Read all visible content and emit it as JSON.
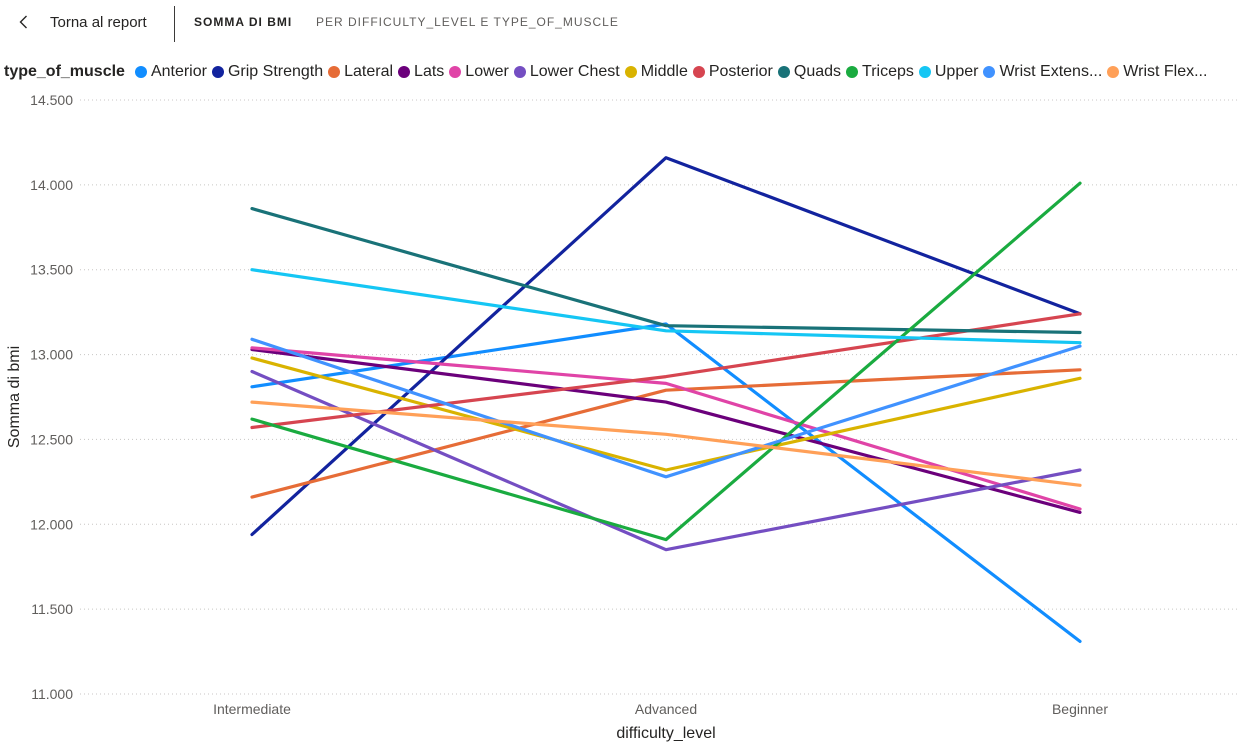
{
  "header": {
    "back_label": "Torna al report",
    "title": "SOMMA DI BMI",
    "subtitle": "PER DIFFICULTY_LEVEL E TYPE_OF_MUSCLE"
  },
  "legend": {
    "title": "type_of_muscle",
    "items": [
      {
        "label": "Anterior",
        "color": "#118DFF"
      },
      {
        "label": "Grip Strength",
        "color": "#12239E"
      },
      {
        "label": "Lateral",
        "color": "#E66C37"
      },
      {
        "label": "Lats",
        "color": "#6B007B"
      },
      {
        "label": "Lower",
        "color": "#E044A7"
      },
      {
        "label": "Lower Chest",
        "color": "#744EC2"
      },
      {
        "label": "Middle",
        "color": "#D9B300"
      },
      {
        "label": "Posterior",
        "color": "#D64550"
      },
      {
        "label": "Quads",
        "color": "#197278"
      },
      {
        "label": "Triceps",
        "color": "#1AAB40"
      },
      {
        "label": "Upper",
        "color": "#15C6F4"
      },
      {
        "label": "Wrist Extens...",
        "color": "#4092FF"
      },
      {
        "label": "Wrist Flex...",
        "color": "#FFA058"
      }
    ]
  },
  "chart_data": {
    "type": "line",
    "categories": [
      "Intermediate",
      "Advanced",
      "Beginner"
    ],
    "xlabel": "difficulty_level",
    "ylabel": "Somma di bmi",
    "ylim": [
      11000,
      14500
    ],
    "yticks": [
      11000,
      11500,
      12000,
      12500,
      13000,
      13500,
      14000,
      14500
    ],
    "ytick_labels": [
      "11.000",
      "11.500",
      "12.000",
      "12.500",
      "13.000",
      "13.500",
      "14.000",
      "14.500"
    ],
    "grid": true,
    "legend_position": "top-left",
    "series": [
      {
        "name": "Anterior",
        "color": "#118DFF",
        "values": [
          12810,
          13180,
          11310
        ]
      },
      {
        "name": "Grip Strength",
        "color": "#12239E",
        "values": [
          11940,
          14160,
          13240
        ]
      },
      {
        "name": "Lateral",
        "color": "#E66C37",
        "values": [
          12160,
          12790,
          12910
        ]
      },
      {
        "name": "Lats",
        "color": "#6B007B",
        "values": [
          13030,
          12720,
          12070
        ]
      },
      {
        "name": "Lower",
        "color": "#E044A7",
        "values": [
          13040,
          12830,
          12090
        ]
      },
      {
        "name": "Lower Chest",
        "color": "#744EC2",
        "values": [
          12900,
          11850,
          12320
        ]
      },
      {
        "name": "Middle",
        "color": "#D9B300",
        "values": [
          12980,
          12320,
          12860
        ]
      },
      {
        "name": "Posterior",
        "color": "#D64550",
        "values": [
          12570,
          12870,
          13240
        ]
      },
      {
        "name": "Quads",
        "color": "#197278",
        "values": [
          13860,
          13170,
          13130
        ]
      },
      {
        "name": "Triceps",
        "color": "#1AAB40",
        "values": [
          12620,
          11910,
          14010
        ]
      },
      {
        "name": "Upper",
        "color": "#15C6F4",
        "values": [
          13500,
          13140,
          13070
        ]
      },
      {
        "name": "Wrist Extens...",
        "color": "#4092FF",
        "values": [
          13090,
          12280,
          13050
        ]
      },
      {
        "name": "Wrist Flex...",
        "color": "#FFA058",
        "values": [
          12720,
          12530,
          12230
        ]
      }
    ]
  }
}
